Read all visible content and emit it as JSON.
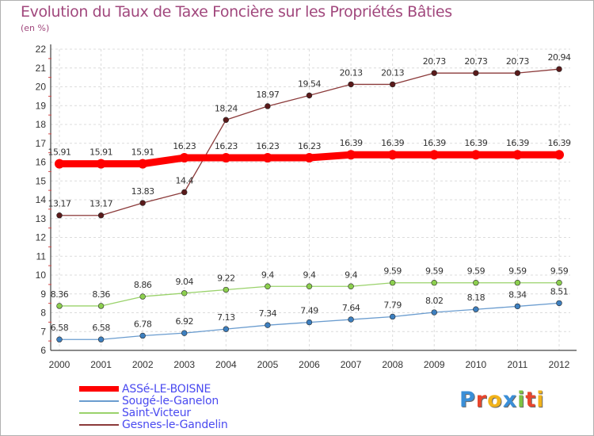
{
  "title": "Evolution du Taux de Taxe Foncière sur les Propriétés Bâties",
  "subtitle": "(en %)",
  "brand": {
    "letters": [
      {
        "char": "P",
        "color": "#3a8fd8"
      },
      {
        "char": "r",
        "color": "#e8452c"
      },
      {
        "char": "o",
        "color": "#f2b31a"
      },
      {
        "char": "x",
        "color": "#3a8fd8"
      },
      {
        "char": "i",
        "color": "#7dc242"
      },
      {
        "char": "t",
        "color": "#e8452c"
      },
      {
        "char": "i",
        "color": "#f2b31a"
      }
    ]
  },
  "chart_data": {
    "type": "line",
    "title": "Evolution du Taux de Taxe Foncière sur les Propriétés Bâties",
    "ylabel": "(en %)",
    "xlabel": "",
    "ylim": [
      6,
      22
    ],
    "yticks": [
      "6",
      "7",
      "8",
      "9",
      "10",
      "11",
      "12",
      "13",
      "14",
      "15",
      "16",
      "17",
      "18",
      "19",
      "20",
      "21",
      "22"
    ],
    "grid": true,
    "categories": [
      "2000",
      "2001",
      "2002",
      "2003",
      "2004",
      "2005",
      "2006",
      "2007",
      "2008",
      "2009",
      "2010",
      "2011",
      "2012"
    ],
    "series": [
      {
        "name": "ASSé-LE-BOISNE",
        "color": "#ff0000",
        "marker": "#ff0000",
        "values": [
          15.91,
          15.91,
          15.91,
          16.23,
          16.23,
          16.23,
          16.23,
          16.39,
          16.39,
          16.39,
          16.39,
          16.39,
          16.39
        ],
        "labels": [
          "15.91",
          "15.91",
          "15.91",
          "16.23",
          "16.23",
          "16.23",
          "16.23",
          "16.39",
          "16.39",
          "16.39",
          "16.39",
          "16.39",
          "16.39"
        ]
      },
      {
        "name": "Sougé-le-Ganelon",
        "color": "#6a9ccf",
        "marker": "#3d7fbf",
        "values": [
          6.58,
          6.58,
          6.78,
          6.92,
          7.13,
          7.34,
          7.49,
          7.64,
          7.79,
          8.02,
          8.18,
          8.34,
          8.51
        ],
        "labels": [
          "6.58",
          "6.58",
          "6.78",
          "6.92",
          "7.13",
          "7.34",
          "7.49",
          "7.64",
          "7.79",
          "8.02",
          "8.18",
          "8.34",
          "8.51"
        ]
      },
      {
        "name": "Saint-Victeur",
        "color": "#9ad26b",
        "marker": "#8ccf4e",
        "values": [
          8.36,
          8.36,
          8.86,
          9.04,
          9.22,
          9.4,
          9.4,
          9.4,
          9.59,
          9.59,
          9.59,
          9.59,
          9.59
        ],
        "labels": [
          "8.36",
          "8.36",
          "8.86",
          "9.04",
          "9.22",
          "9.4",
          "9.4",
          "9.4",
          "9.59",
          "9.59",
          "9.59",
          "9.59",
          "9.59"
        ]
      },
      {
        "name": "Gesnes-le-Gandelin",
        "color": "#8b3a3a",
        "marker": "#5a1a1a",
        "values": [
          13.17,
          13.17,
          13.83,
          14.4,
          18.24,
          18.97,
          19.54,
          20.13,
          20.13,
          20.73,
          20.73,
          20.73,
          20.94
        ],
        "labels": [
          "13.17",
          "13.17",
          "13.83",
          "14.4",
          "18.24",
          "18.97",
          "19.54",
          "20.13",
          "20.13",
          "20.73",
          "20.73",
          "20.73",
          "20.94"
        ]
      }
    ]
  }
}
